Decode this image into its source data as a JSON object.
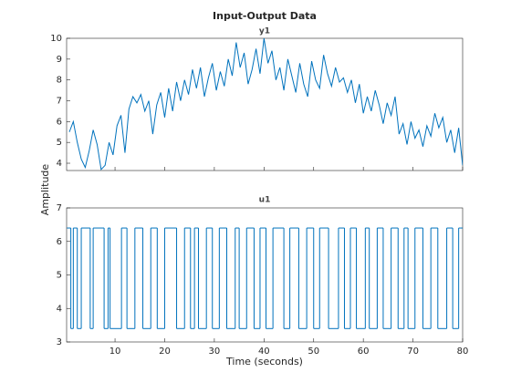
{
  "chart_data": [
    {
      "type": "line",
      "title": "Input-Output Data",
      "subtitle": "y1",
      "ylabel": "Amplitude",
      "xlim": [
        0.25,
        80
      ],
      "xticks": [
        10,
        20,
        30,
        40,
        50,
        60,
        70,
        80
      ],
      "ylim": [
        3.65,
        10
      ],
      "yticks": [
        4,
        5,
        6,
        7,
        8,
        9,
        10
      ],
      "x": [
        0.8,
        1.6,
        2.4,
        3.2,
        4.0,
        4.8,
        5.6,
        6.4,
        7.2,
        8.0,
        8.8,
        9.6,
        10.4,
        11.2,
        12.0,
        12.8,
        13.6,
        14.4,
        15.2,
        16.0,
        16.8,
        17.6,
        18.4,
        19.2,
        20.0,
        20.8,
        21.6,
        22.4,
        23.2,
        24.0,
        24.8,
        25.6,
        26.4,
        27.2,
        28.0,
        28.8,
        29.6,
        30.4,
        31.2,
        32.0,
        32.8,
        33.6,
        34.4,
        35.2,
        36.0,
        36.8,
        37.6,
        38.4,
        39.2,
        40.0,
        40.8,
        41.6,
        42.4,
        43.2,
        44.0,
        44.8,
        45.6,
        46.4,
        47.2,
        48.0,
        48.8,
        49.6,
        50.4,
        51.2,
        52.0,
        52.8,
        53.6,
        54.4,
        55.2,
        56.0,
        56.8,
        57.6,
        58.4,
        59.2,
        60.0,
        60.8,
        61.6,
        62.4,
        63.2,
        64.0,
        64.8,
        65.6,
        66.4,
        67.2,
        68.0,
        68.8,
        69.6,
        70.4,
        71.2,
        72.0,
        72.8,
        73.6,
        74.4,
        75.2,
        76.0,
        76.8,
        77.6,
        78.4,
        79.2,
        80.0
      ],
      "series": [
        {
          "name": "y1",
          "color": "#0072bd",
          "values": [
            5.5,
            6.0,
            5.0,
            4.2,
            3.8,
            4.6,
            5.6,
            4.9,
            3.7,
            3.9,
            5.0,
            4.4,
            5.8,
            6.3,
            4.5,
            6.6,
            7.2,
            6.9,
            7.3,
            6.5,
            7.0,
            5.4,
            6.8,
            7.4,
            6.2,
            7.6,
            6.5,
            7.9,
            7.0,
            8.0,
            7.3,
            8.5,
            7.6,
            8.6,
            7.2,
            8.1,
            8.8,
            7.5,
            8.4,
            7.7,
            9.0,
            8.2,
            9.8,
            8.6,
            9.3,
            7.8,
            8.5,
            9.5,
            8.3,
            10.0,
            8.8,
            9.4,
            8.0,
            8.6,
            7.5,
            9.0,
            8.2,
            7.4,
            8.8,
            7.8,
            7.2,
            8.9,
            8.0,
            7.6,
            9.2,
            8.3,
            7.7,
            8.6,
            7.9,
            8.1,
            7.4,
            8.0,
            6.9,
            7.8,
            6.4,
            7.2,
            6.5,
            7.5,
            6.8,
            5.9,
            6.9,
            6.3,
            7.2,
            5.4,
            5.9,
            4.9,
            6.0,
            5.2,
            5.6,
            4.8,
            5.8,
            5.3,
            6.4,
            5.7,
            6.2,
            5.0,
            5.6,
            4.5,
            5.7,
            3.9
          ]
        }
      ]
    },
    {
      "type": "stairs",
      "subtitle": "u1",
      "xlabel": "Time (seconds)",
      "xlim": [
        0.25,
        80
      ],
      "xticks": [
        10,
        20,
        30,
        40,
        50,
        60,
        70,
        80
      ],
      "ylim": [
        3,
        7
      ],
      "yticks": [
        3,
        4,
        5,
        6,
        7
      ],
      "x": [
        0.3,
        1.1,
        1.6,
        2.4,
        3.2,
        5.0,
        5.6,
        7.8,
        8.6,
        9.0,
        11.3,
        12.4,
        14.0,
        15.6,
        17.2,
        18.5,
        20.0,
        22.4,
        24.0,
        25.2,
        26.0,
        26.8,
        28.4,
        29.6,
        31.0,
        32.5,
        34.2,
        35.0,
        36.5,
        38.0,
        39.2,
        40.4,
        41.8,
        44.0,
        45.2,
        47.0,
        48.6,
        50.0,
        51.2,
        53.0,
        55.0,
        56.2,
        57.4,
        58.6,
        60.4,
        61.2,
        62.8,
        64.0,
        65.6,
        67.0,
        68.2,
        69.0,
        70.4,
        72.0,
        73.6,
        75.0,
        76.8,
        78.0,
        79.2,
        80
      ],
      "series": [
        {
          "name": "u1",
          "color": "#0072bd",
          "values": [
            6.4,
            3.4,
            6.4,
            3.4,
            6.4,
            3.4,
            6.4,
            3.4,
            6.4,
            3.4,
            6.4,
            3.4,
            6.4,
            3.4,
            6.4,
            3.4,
            6.4,
            3.4,
            6.4,
            3.4,
            6.4,
            3.4,
            6.4,
            3.4,
            6.4,
            3.4,
            6.4,
            3.4,
            6.4,
            3.4,
            6.4,
            3.4,
            6.4,
            3.4,
            6.4,
            3.4,
            6.4,
            3.4,
            6.4,
            3.4,
            6.4,
            3.4,
            6.4,
            3.4,
            6.4,
            3.4,
            6.4,
            3.4,
            6.4,
            3.4,
            6.4,
            3.4,
            6.4,
            3.4,
            6.4,
            3.4,
            6.4,
            3.4,
            6.4,
            6.4
          ]
        }
      ]
    }
  ]
}
